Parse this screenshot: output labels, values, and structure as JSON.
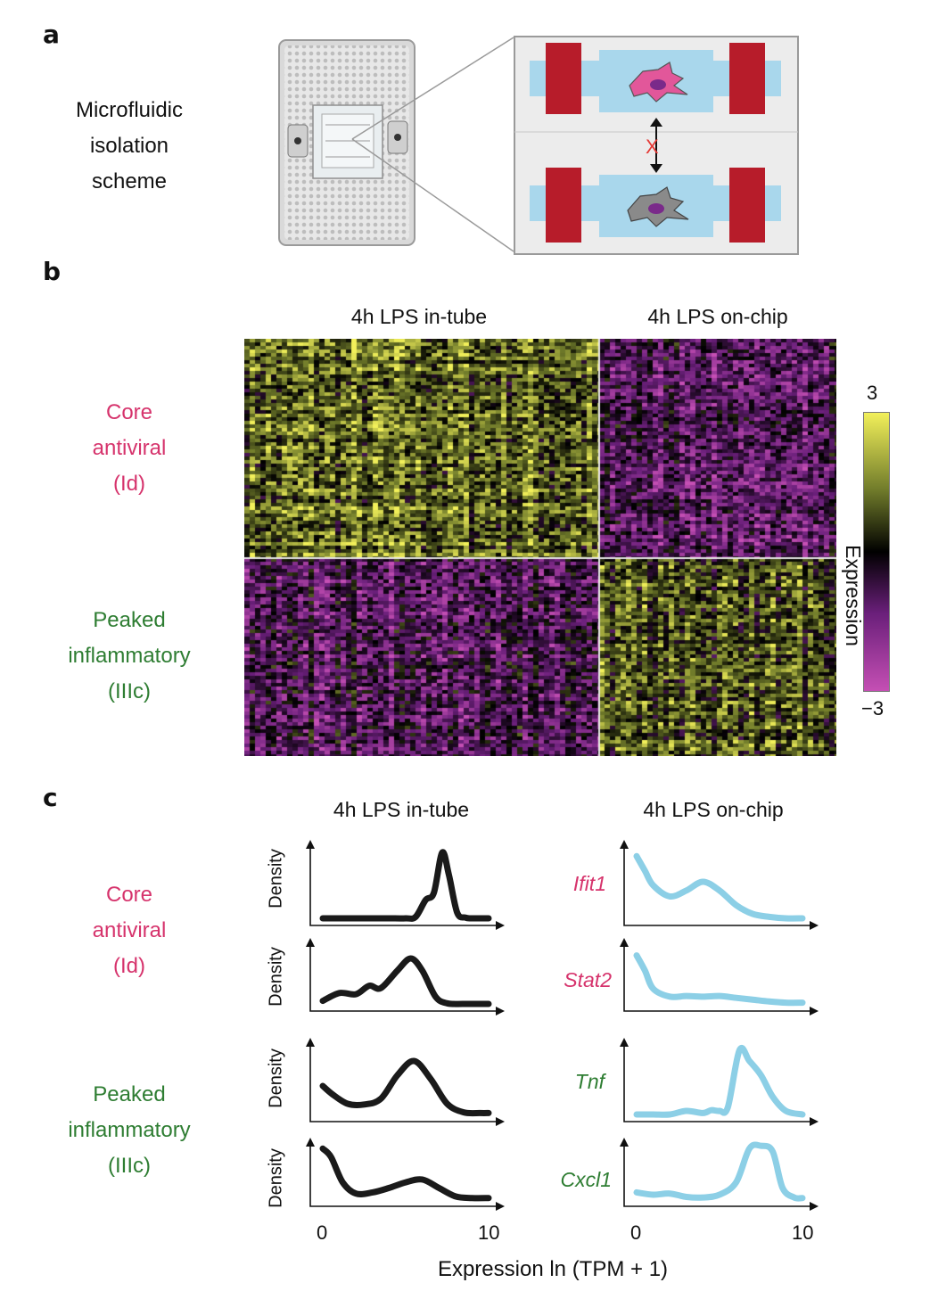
{
  "panels": {
    "a": "a",
    "b": "b",
    "c": "c"
  },
  "panel_a": {
    "scheme_label": [
      "Microfluidic",
      "isolation",
      "scheme"
    ],
    "chip_image": "microfluidic-chip-photo",
    "schematic": {
      "chamber_color": "#a9d7ec",
      "valve_color": "#b71c2a",
      "blocked_mark": "X",
      "cell_top_color": "#e2579a",
      "cell_bottom_color": "#8a8a8a"
    }
  },
  "panel_b": {
    "columns": [
      "4h LPS in-tube",
      "4h LPS on-chip"
    ],
    "rows": [
      {
        "lines": [
          "Core",
          "antiviral",
          "(Id)"
        ],
        "color": "#d6336c"
      },
      {
        "lines": [
          "Peaked",
          "inflammatory",
          "(IIIc)"
        ],
        "color": "#2e7d32"
      }
    ],
    "colorbar": {
      "label": "Expression",
      "max": "3",
      "min": "−3",
      "colors": [
        "#c54fb4",
        "#6a1f7a",
        "#000000",
        "#6f7a2a",
        "#f2f05a"
      ]
    },
    "heatmap_pattern": {
      "top_left": "high",
      "top_right": "low",
      "bottom_left": "low",
      "bottom_right": "high"
    }
  },
  "panel_c": {
    "columns": [
      "4h LPS in-tube",
      "4h LPS on-chip"
    ],
    "row_groups": [
      {
        "lines": [
          "Core",
          "antiviral",
          "(Id)"
        ],
        "color": "#d6336c"
      },
      {
        "lines": [
          "Peaked",
          "inflammatory",
          "(IIIc)"
        ],
        "color": "#2e7d32"
      }
    ],
    "y_label": "Density",
    "x_label": "Expression ln (TPM + 1)",
    "x_ticks": [
      "0",
      "10"
    ],
    "genes": [
      {
        "name": "Ifit1",
        "color": "#d6336c"
      },
      {
        "name": "Stat2",
        "color": "#d6336c"
      },
      {
        "name": "Tnf",
        "color": "#2e7d32"
      },
      {
        "name": "Cxcl1",
        "color": "#2e7d32"
      }
    ]
  },
  "chart_data": [
    {
      "type": "heatmap",
      "title": "",
      "columns": [
        "4h LPS in-tube",
        "4h LPS on-chip"
      ],
      "row_groups": [
        "Core antiviral (Id)",
        "Peaked inflammatory (IIIc)"
      ],
      "color_scale": {
        "min": -3,
        "max": 3,
        "label": "Expression"
      },
      "mean_block_values": [
        [
          1.2,
          -1.2
        ],
        [
          -1.0,
          0.9
        ]
      ]
    },
    {
      "type": "line",
      "xlabel": "Expression ln (TPM + 1)",
      "ylabel": "Density",
      "xlim": [
        0,
        10
      ],
      "line_colors": {
        "in_tube": "#1a1a1a",
        "on_chip": "#8ccfe6"
      },
      "panels": [
        {
          "gene": "Ifit1",
          "condition": "4h LPS in-tube",
          "x": [
            0,
            1,
            2,
            3,
            4,
            5,
            5.6,
            6.2,
            6.7,
            7.2,
            7.6,
            8.1,
            8.6,
            9,
            10
          ],
          "y": [
            0,
            0,
            0,
            0,
            0,
            0,
            0.02,
            0.25,
            0.35,
            0.9,
            0.6,
            0.08,
            0.01,
            0,
            0
          ]
        },
        {
          "gene": "Ifit1",
          "condition": "4h LPS on-chip",
          "x": [
            0,
            0.5,
            1,
            2,
            3,
            4,
            5,
            6,
            7,
            8,
            9,
            10
          ],
          "y": [
            0.85,
            0.65,
            0.45,
            0.3,
            0.38,
            0.5,
            0.38,
            0.18,
            0.06,
            0.02,
            0,
            0
          ]
        },
        {
          "gene": "Stat2",
          "condition": "4h LPS in-tube",
          "x": [
            0,
            1,
            2,
            2.8,
            3.5,
            4.5,
            5.3,
            6,
            6.8,
            7.5,
            8.5,
            10
          ],
          "y": [
            0.05,
            0.18,
            0.16,
            0.3,
            0.26,
            0.55,
            0.75,
            0.55,
            0.12,
            0.01,
            0,
            0
          ],
          "y_rel_max": 1
        },
        {
          "gene": "Stat2",
          "condition": "4h LPS on-chip",
          "x": [
            0,
            0.5,
            1,
            2,
            3,
            4,
            5,
            6,
            7,
            8,
            9,
            10
          ],
          "y": [
            0.8,
            0.55,
            0.25,
            0.12,
            0.13,
            0.12,
            0.13,
            0.1,
            0.07,
            0.04,
            0.02,
            0.02
          ]
        },
        {
          "gene": "Tnf",
          "condition": "4h LPS in-tube",
          "x": [
            0,
            0.6,
            1.5,
            2.5,
            3.5,
            4.5,
            5.5,
            6.5,
            7.5,
            8.5,
            9.5,
            10
          ],
          "y": [
            0.4,
            0.28,
            0.15,
            0.14,
            0.22,
            0.55,
            0.75,
            0.5,
            0.15,
            0.03,
            0.02,
            0.02
          ]
        },
        {
          "gene": "Tnf",
          "condition": "4h LPS on-chip",
          "x": [
            0,
            1,
            2,
            3,
            4,
            4.5,
            5,
            5.5,
            6.2,
            6.8,
            7.5,
            8.2,
            9,
            10
          ],
          "y": [
            0,
            0,
            0,
            0.05,
            0.02,
            0.06,
            0.05,
            0.1,
            0.9,
            0.75,
            0.55,
            0.25,
            0.05,
            0
          ]
        },
        {
          "gene": "Cxcl1",
          "condition": "4h LPS in-tube",
          "x": [
            0,
            0.5,
            1.2,
            2,
            3,
            4,
            5,
            6,
            7,
            8,
            9,
            10
          ],
          "y": [
            0.9,
            0.75,
            0.3,
            0.1,
            0.12,
            0.2,
            0.3,
            0.35,
            0.2,
            0.05,
            0.02,
            0.02
          ]
        },
        {
          "gene": "Cxcl1",
          "condition": "4h LPS on-chip",
          "x": [
            0,
            1,
            2,
            3,
            4,
            5,
            6,
            6.8,
            7.5,
            8.2,
            8.8,
            9.5,
            10
          ],
          "y": [
            0.12,
            0.08,
            0.1,
            0.04,
            0.03,
            0.08,
            0.3,
            0.9,
            0.95,
            0.85,
            0.2,
            0.03,
            0.02
          ]
        }
      ]
    }
  ]
}
